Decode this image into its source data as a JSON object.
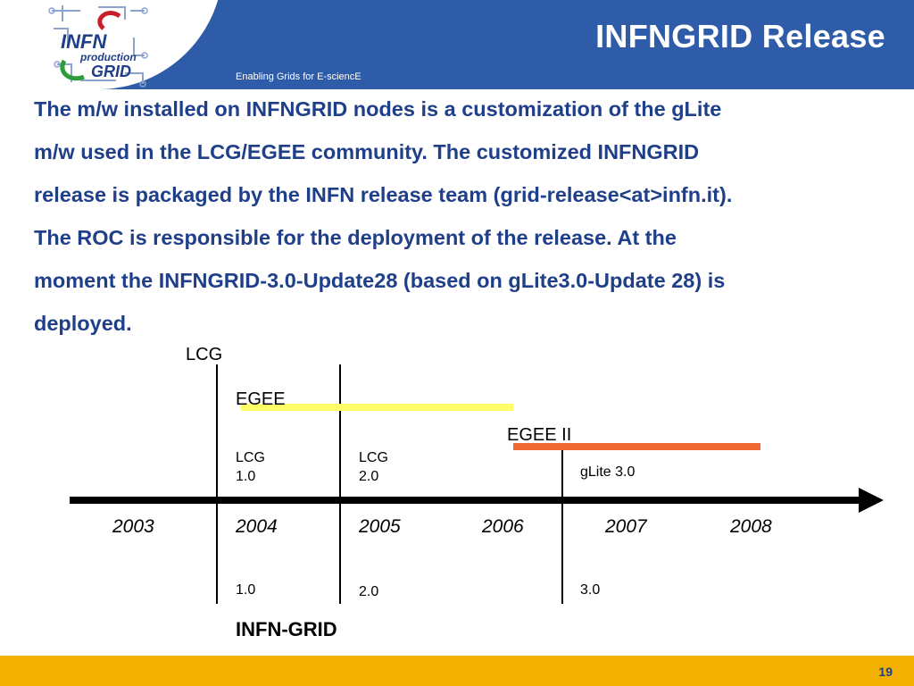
{
  "header": {
    "title": "INFNGRID Release",
    "subtitle": "Enabling Grids for E-sciencE",
    "logo": {
      "line1": "INFN",
      "line2": "production",
      "line3": "GRID"
    }
  },
  "body": {
    "lines": [
      "The m/w installed on INFNGRID nodes is a customization of the gLite",
      "m/w used in the LCG/EGEE community.  The customized INFNGRID",
      "release is packaged by the INFN release team (grid-release<at>infn.it).",
      "The ROC is responsible for the deployment of the release. At the",
      "moment the INFNGRID-3.0-Update28 (based on gLite3.0-Update 28) is",
      "deployed."
    ]
  },
  "timeline": {
    "project_lcg": "LCG",
    "project_egee": "EGEE",
    "project_egee2": "EGEE II",
    "lcg_10": [
      "LCG",
      "1.0"
    ],
    "lcg_20": [
      "LCG",
      "2.0"
    ],
    "glite": "gLite 3.0",
    "years": [
      "2003",
      "2004",
      "2005",
      "2006",
      "2007",
      "2008"
    ],
    "infngrid_versions": [
      "1.0",
      "2.0",
      "3.0"
    ],
    "infngrid_label": "INFN-GRID",
    "colors": {
      "egee": "#ffff66",
      "egee2": "#f06a35",
      "axis": "#000000"
    }
  },
  "footer": {
    "page": "19"
  }
}
